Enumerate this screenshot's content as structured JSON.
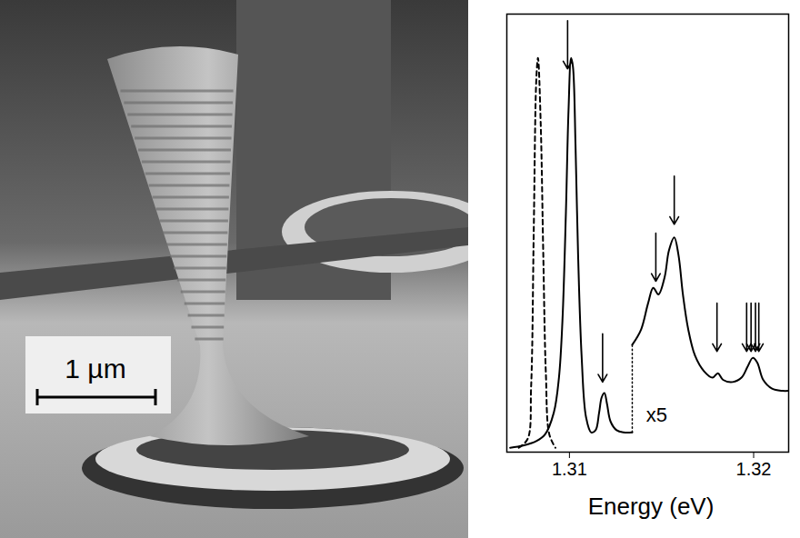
{
  "micrograph": {
    "scale_bar_label": "1 µm"
  },
  "chart_data": {
    "type": "line",
    "x_label": "Energy (eV)",
    "xlim": [
      1.3066,
      1.3219
    ],
    "xticks": [
      1.31,
      1.32
    ],
    "ylim": [
      0,
      1
    ],
    "tick_labels": "x",
    "grid": false,
    "series": [
      {
        "color": "#000000",
        "line_style": "solid",
        "x": [
          1.30678,
          1.30749,
          1.3082,
          1.30867,
          1.30915,
          1.30943,
          1.30962,
          1.30981,
          1.30995,
          1.31009,
          1.31019,
          1.31033,
          1.31047,
          1.31066,
          1.3109,
          1.31118,
          1.31142,
          1.31161,
          1.31175,
          1.3119,
          1.31204,
          1.31223,
          1.31256,
          1.31294,
          1.31341
        ],
        "values": [
          0.01,
          0.015,
          0.025,
          0.04,
          0.09,
          0.17,
          0.3,
          0.55,
          0.78,
          0.9,
          0.88,
          0.7,
          0.45,
          0.22,
          0.08,
          0.045,
          0.05,
          0.09,
          0.125,
          0.135,
          0.11,
          0.07,
          0.05,
          0.045,
          0.045
        ]
      },
      {
        "color": "#000000",
        "line_style": "solid",
        "x": [
          1.31341,
          1.31389,
          1.31427,
          1.31455,
          1.31483,
          1.31517,
          1.3154,
          1.31569,
          1.31592,
          1.31616,
          1.31645,
          1.31682,
          1.3173,
          1.31777,
          1.31806,
          1.31834,
          1.31886,
          1.31934,
          1.31967,
          1.31995,
          1.32019,
          1.32052,
          1.321,
          1.32156,
          1.32194
        ],
        "values": [
          0.245,
          0.28,
          0.34,
          0.375,
          0.36,
          0.4,
          0.46,
          0.49,
          0.45,
          0.36,
          0.28,
          0.22,
          0.185,
          0.17,
          0.18,
          0.165,
          0.16,
          0.17,
          0.195,
          0.215,
          0.205,
          0.165,
          0.145,
          0.14,
          0.14
        ]
      },
      {
        "color": "#000000",
        "line_style": "dashed",
        "x": [
          1.30725,
          1.30773,
          1.30792,
          1.30806,
          1.3082,
          1.30829,
          1.30844,
          1.30858,
          1.30872,
          1.30891,
          1.30924
        ],
        "values": [
          0.01,
          0.03,
          0.15,
          0.5,
          0.85,
          0.9,
          0.75,
          0.45,
          0.18,
          0.04,
          0.01
        ]
      }
    ],
    "arrows": [
      {
        "x": 1.3099,
        "y": 0.875
      },
      {
        "x": 1.3118,
        "y": 0.16
      },
      {
        "x": 1.31469,
        "y": 0.39
      },
      {
        "x": 1.31569,
        "y": 0.52
      },
      {
        "x": 1.31801,
        "y": 0.23
      },
      {
        "x": 1.31962,
        "y": 0.23
      },
      {
        "x": 1.31986,
        "y": 0.23
      },
      {
        "x": 1.3201,
        "y": 0.23
      },
      {
        "x": 1.32028,
        "y": 0.23
      }
    ],
    "annotations": [
      {
        "text": "x5",
        "x": 1.31474,
        "y": 0.085
      }
    ]
  }
}
